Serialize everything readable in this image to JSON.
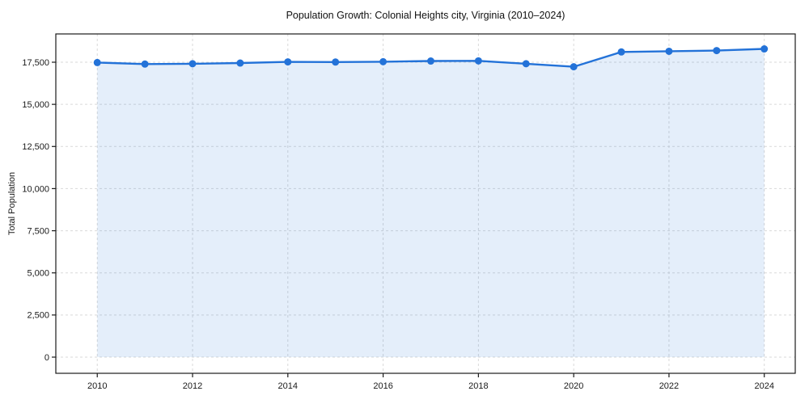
{
  "chart_data": {
    "type": "area",
    "title": "Population Growth: Colonial Heights city, Virginia (2010–2024)",
    "xlabel": "",
    "ylabel": "Total Population",
    "series": [
      {
        "name": "Total Population",
        "x": [
          2010,
          2011,
          2012,
          2013,
          2014,
          2015,
          2016,
          2017,
          2018,
          2019,
          2020,
          2021,
          2022,
          2023,
          2024
        ],
        "values": [
          17480,
          17390,
          17410,
          17450,
          17520,
          17510,
          17530,
          17570,
          17580,
          17410,
          17230,
          18110,
          18150,
          18190,
          18290
        ]
      }
    ],
    "xtick_values": [
      2010,
      2012,
      2014,
      2016,
      2018,
      2020,
      2022,
      2024
    ],
    "xtick_labels": [
      "2010",
      "2012",
      "2014",
      "2016",
      "2018",
      "2020",
      "2022",
      "2024"
    ],
    "ytick_values": [
      0,
      2500,
      5000,
      7500,
      10000,
      12500,
      15000,
      17500
    ],
    "ytick_labels": [
      "0",
      "2,500",
      "5,000",
      "7,500",
      "10,000",
      "12,500",
      "15,000",
      "17,500"
    ],
    "xlim": [
      2009.13,
      2024.65
    ],
    "ylim": [
      -959,
      19178
    ],
    "grid": true,
    "grid_style": "dashed",
    "legend": "none",
    "colors": {
      "line": "#2372d8",
      "marker": "#2372d8",
      "fill": "#2372d8",
      "fill_opacity": 0.12,
      "grid": "#d9d9d9",
      "spine": "#1a1a1a",
      "text": "#1a1a1a",
      "background": "#ffffff"
    }
  }
}
